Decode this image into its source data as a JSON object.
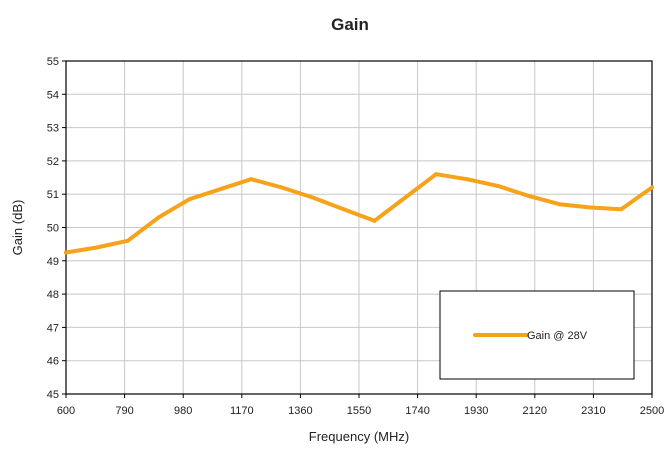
{
  "chart_data": {
    "type": "line",
    "title": "Gain",
    "xlabel": "Frequency (MHz)",
    "ylabel": "Gain (dB)",
    "xlim": [
      600,
      2500
    ],
    "ylim": [
      45,
      55
    ],
    "x_ticks": [
      "600",
      "790",
      "980",
      "1170",
      "1360",
      "1550",
      "1740",
      "1930",
      "2120",
      "2310",
      "2500"
    ],
    "y_ticks": [
      "45",
      "46",
      "47",
      "48",
      "49",
      "50",
      "51",
      "52",
      "53",
      "54",
      "55"
    ],
    "grid": true,
    "legend_position": "bottom-right",
    "series": [
      {
        "name": "Gain @ 28V",
        "color": "#F7A21B",
        "x": [
          600,
          700,
          800,
          900,
          1000,
          1100,
          1200,
          1300,
          1400,
          1500,
          1600,
          1700,
          1800,
          1900,
          2000,
          2100,
          2200,
          2300,
          2400,
          2500
        ],
        "y": [
          49.25,
          49.4,
          49.6,
          50.3,
          50.85,
          51.15,
          51.45,
          51.2,
          50.9,
          50.55,
          50.2,
          50.9,
          51.6,
          51.45,
          51.25,
          50.95,
          50.7,
          50.6,
          50.55,
          51.2
        ]
      }
    ]
  }
}
